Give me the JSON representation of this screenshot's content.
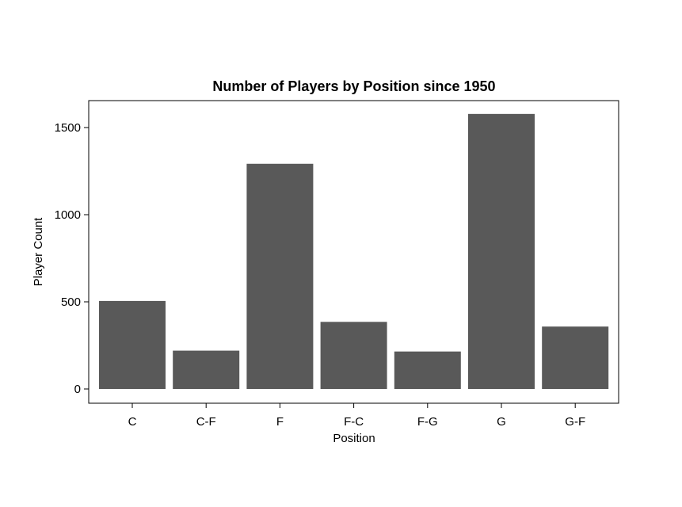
{
  "chart_data": {
    "type": "bar",
    "title": "Number of Players by Position since 1950",
    "xlabel": "Position",
    "ylabel": "Player Count",
    "categories": [
      "C",
      "C-F",
      "F",
      "F-C",
      "F-G",
      "G",
      "G-F"
    ],
    "values": [
      505,
      220,
      1292,
      385,
      215,
      1578,
      358
    ],
    "ylim": [
      0,
      1600
    ],
    "yticks": [
      0,
      500,
      1000,
      1500
    ],
    "grid": false,
    "bar_color": "#595959",
    "axis_color": "#000000"
  }
}
